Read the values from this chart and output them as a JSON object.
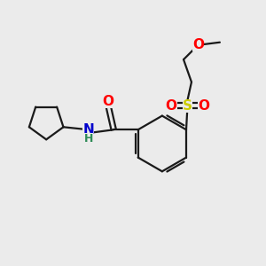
{
  "bg_color": "#ebebeb",
  "bond_color": "#1a1a1a",
  "O_color": "#ff0000",
  "N_color": "#0000cc",
  "S_color": "#cccc00",
  "H_color": "#2e8b57",
  "lw": 1.6,
  "figsize": [
    3.0,
    3.0
  ],
  "dpi": 100,
  "xlim": [
    0,
    10
  ],
  "ylim": [
    0,
    10
  ]
}
